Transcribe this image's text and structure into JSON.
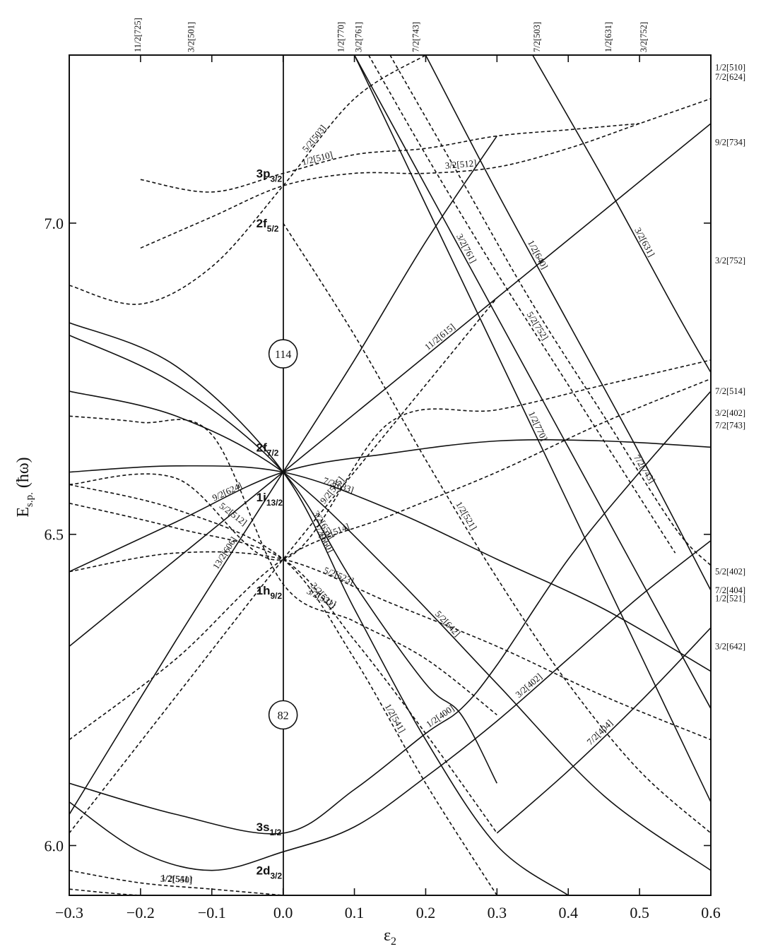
{
  "chart_data": {
    "type": "line",
    "title": "",
    "xlabel": "ε",
    "xlabel_sub": "2",
    "ylabel": "E",
    "ylabel_sub": "s.p.",
    "ylabel_unit": "(ħω)",
    "xlim": [
      -0.3,
      0.6
    ],
    "ylim": [
      5.92,
      7.27
    ],
    "xticks": [
      "-0.3",
      "-0.2",
      "-0.1",
      "0.0",
      "0.1",
      "0.2",
      "0.3",
      "0.4",
      "0.5",
      "0.6"
    ],
    "yticks": [
      "6.0",
      "6.5",
      "7.0"
    ],
    "grid": false,
    "legend": "none",
    "spherical_levels": [
      {
        "main": "3p",
        "sub": "3/2",
        "e": 7.08
      },
      {
        "main": "2f",
        "sub": "5/2",
        "e": 7.0
      },
      {
        "main": "2f",
        "sub": "7/2",
        "e": 6.64
      },
      {
        "main": "1i",
        "sub": "13/2",
        "e": 6.56
      },
      {
        "main": "1h",
        "sub": "9/2",
        "e": 6.41
      },
      {
        "main": "3s",
        "sub": "1/2",
        "e": 6.03
      },
      {
        "main": "2d",
        "sub": "3/2",
        "e": 5.96
      }
    ],
    "magic_numbers": [
      {
        "label": "114",
        "e": 6.79
      },
      {
        "label": "82",
        "e": 6.21
      }
    ],
    "top_edge_labels": [
      "11/2[725]",
      "3/2[501]",
      "1/2[770]",
      "3/2[761]",
      "7/2[743]",
      "7/2[503]",
      "1/2[631]",
      "3/2[752]"
    ],
    "right_edge_labels": [
      "1/2[510]",
      "7/2[624]",
      "9/2[734]",
      "3/2[752]",
      "7/2[514]",
      "3/2[402]",
      "7/2[743]",
      "5/2[402]",
      "7/2[404]",
      "1/2[521]",
      "3/2[642]"
    ],
    "series": [
      {
        "name": "9/2[624]",
        "style": "solid",
        "x": [
          -0.3,
          -0.15,
          0.0,
          0.15,
          0.3,
          0.45,
          0.6
        ],
        "y": [
          6.44,
          6.52,
          6.6,
          6.63,
          6.65,
          6.65,
          6.64
        ]
      },
      {
        "name": "7/2[633]",
        "style": "solid",
        "x": [
          -0.3,
          -0.15,
          0.0,
          0.15,
          0.3,
          0.45,
          0.6
        ],
        "y": [
          6.6,
          6.61,
          6.6,
          6.54,
          6.46,
          6.38,
          6.28
        ]
      },
      {
        "name": "5/2[642]",
        "style": "solid",
        "x": [
          -0.3,
          -0.15,
          0.0,
          0.15,
          0.3,
          0.45,
          0.6
        ],
        "y": [
          6.73,
          6.69,
          6.6,
          6.44,
          6.26,
          6.08,
          5.96
        ]
      },
      {
        "name": "3/2[651]",
        "style": "solid",
        "x": [
          -0.3,
          -0.15,
          0.0,
          0.1,
          0.2,
          0.25,
          0.3
        ],
        "y": [
          6.82,
          6.74,
          6.6,
          6.42,
          6.26,
          6.21,
          6.1
        ]
      },
      {
        "name": "1/2[660]",
        "style": "solid",
        "x": [
          -0.3,
          -0.15,
          0.0,
          0.1,
          0.2,
          0.3,
          0.4
        ],
        "y": [
          6.84,
          6.77,
          6.6,
          6.38,
          6.17,
          6.0,
          5.92
        ]
      },
      {
        "name": "11/2[615]",
        "style": "solid",
        "x": [
          -0.3,
          -0.15,
          0.0,
          0.15,
          0.3,
          0.45,
          0.6
        ],
        "y": [
          6.32,
          6.46,
          6.6,
          6.74,
          6.88,
          7.02,
          7.16
        ]
      },
      {
        "name": "13/2[606]",
        "style": "solid",
        "x": [
          -0.3,
          -0.15,
          0.0,
          0.1,
          0.2,
          0.3
        ],
        "y": [
          6.05,
          6.33,
          6.6,
          6.78,
          6.97,
          7.14
        ]
      },
      {
        "name": "1/2[400]",
        "style": "solid",
        "x": [
          -0.3,
          -0.15,
          0.0,
          0.1,
          0.2,
          0.25,
          0.3,
          0.4,
          0.5,
          0.6
        ],
        "y": [
          6.1,
          6.05,
          6.02,
          6.09,
          6.18,
          6.22,
          6.29,
          6.46,
          6.6,
          6.73
        ]
      },
      {
        "name": "3/2[402]",
        "style": "solid",
        "x": [
          -0.3,
          -0.2,
          -0.1,
          0.0,
          0.1,
          0.2,
          0.3,
          0.4,
          0.5,
          0.6
        ],
        "y": [
          6.07,
          5.99,
          5.96,
          5.99,
          6.03,
          6.11,
          6.2,
          6.3,
          6.4,
          6.49
        ]
      },
      {
        "name": "7/2[404]",
        "style": "solid",
        "x": [
          0.3,
          0.4,
          0.5,
          0.6
        ],
        "y": [
          6.02,
          6.12,
          6.23,
          6.35
        ]
      },
      {
        "name": "1/2[770]",
        "style": "solid",
        "x": [
          0.1,
          0.2,
          0.3,
          0.4,
          0.5,
          0.6
        ],
        "y": [
          7.27,
          7.03,
          6.79,
          6.55,
          6.31,
          6.07
        ]
      },
      {
        "name": "3/2[761]",
        "style": "solid",
        "x": [
          0.1,
          0.2,
          0.3,
          0.4,
          0.5,
          0.6
        ],
        "y": [
          7.27,
          7.06,
          6.85,
          6.64,
          6.43,
          6.22
        ]
      },
      {
        "name": "1/2[640]",
        "style": "solid",
        "x": [
          0.2,
          0.3,
          0.4,
          0.5,
          0.6
        ],
        "y": [
          7.27,
          7.05,
          6.84,
          6.63,
          6.41
        ]
      },
      {
        "name": "3/2[631]",
        "style": "solid",
        "x": [
          0.35,
          0.45,
          0.55,
          0.6
        ],
        "y": [
          7.27,
          7.07,
          6.86,
          6.76
        ]
      },
      {
        "name": "1/2[521]",
        "style": "dashed",
        "x": [
          0.0,
          0.1,
          0.2,
          0.3,
          0.4,
          0.5,
          0.6
        ],
        "y": [
          7.0,
          6.82,
          6.62,
          6.43,
          6.26,
          6.12,
          6.02
        ]
      },
      {
        "name": "3/2[512]",
        "style": "dashed",
        "x": [
          -0.2,
          -0.1,
          0.0,
          0.1,
          0.2,
          0.3,
          0.4,
          0.5,
          0.6
        ],
        "y": [
          6.96,
          7.01,
          7.06,
          7.08,
          7.08,
          7.09,
          7.12,
          7.16,
          7.2
        ]
      },
      {
        "name": "5/2[503]",
        "style": "dashed",
        "x": [
          -0.3,
          -0.2,
          -0.1,
          0.0,
          0.1,
          0.2
        ],
        "y": [
          6.9,
          6.87,
          6.93,
          7.06,
          7.2,
          7.27
        ]
      },
      {
        "name": "1/2[510]",
        "style": "dashed",
        "x": [
          -0.2,
          -0.1,
          0.0,
          0.1,
          0.2,
          0.3,
          0.4,
          0.5
        ],
        "y": [
          7.07,
          7.05,
          7.08,
          7.11,
          7.12,
          7.14,
          7.15,
          7.16
        ]
      },
      {
        "name": "3/2[521]",
        "style": "dashed",
        "x": [
          -0.3,
          -0.2,
          -0.1,
          0.0,
          0.1,
          0.2,
          0.3
        ],
        "y": [
          6.69,
          6.68,
          6.66,
          6.42,
          6.36,
          6.3,
          6.21
        ]
      },
      {
        "name": "5/2[512]",
        "style": "dashed",
        "x": [
          -0.3,
          -0.15,
          0.0,
          0.15,
          0.3,
          0.45,
          0.6
        ],
        "y": [
          6.58,
          6.59,
          6.46,
          6.68,
          6.7,
          6.74,
          6.78
        ]
      },
      {
        "name": "7/2[514]",
        "style": "dashed",
        "x": [
          -0.3,
          -0.15,
          0.0,
          0.15,
          0.3,
          0.45,
          0.6
        ],
        "y": [
          6.17,
          6.3,
          6.46,
          6.53,
          6.6,
          6.68,
          6.75
        ]
      },
      {
        "name": "9/2[505]",
        "style": "dashed",
        "x": [
          -0.3,
          -0.15,
          0.0,
          0.15,
          0.3
        ],
        "y": [
          6.02,
          6.24,
          6.46,
          6.67,
          6.88
        ]
      },
      {
        "name": "5/2[523]",
        "style": "dashed",
        "x": [
          -0.3,
          -0.15,
          0.0,
          0.15,
          0.3,
          0.45,
          0.6
        ],
        "y": [
          6.44,
          6.47,
          6.46,
          6.39,
          6.32,
          6.24,
          6.17
        ]
      },
      {
        "name": "3/2[532]",
        "style": "dashed",
        "x": [
          -0.3,
          -0.15,
          0.0,
          0.1,
          0.2,
          0.3
        ],
        "y": [
          6.55,
          6.51,
          6.46,
          6.33,
          6.18,
          6.02
        ]
      },
      {
        "name": "1/2[541]",
        "style": "dashed",
        "x": [
          -0.3,
          -0.15,
          0.0,
          0.1,
          0.2,
          0.3
        ],
        "y": [
          6.58,
          6.54,
          6.46,
          6.3,
          6.1,
          5.92
        ]
      },
      {
        "name": "1/2[550]",
        "style": "dashed",
        "x": [
          -0.3,
          -0.2,
          -0.1,
          0.0
        ],
        "y": [
          5.96,
          5.94,
          5.93,
          5.92
        ]
      },
      {
        "name": "3/2[541]",
        "style": "dashed",
        "x": [
          -0.3,
          -0.2,
          -0.1
        ],
        "y": [
          5.93,
          5.92,
          5.92
        ]
      },
      {
        "name": "7/2[743]",
        "style": "dashed",
        "x": [
          0.15,
          0.25,
          0.35,
          0.45,
          0.55,
          0.6
        ],
        "y": [
          7.27,
          7.07,
          6.87,
          6.69,
          6.51,
          6.45
        ]
      },
      {
        "name": "5/2[752]",
        "style": "dashed",
        "x": [
          0.12,
          0.2,
          0.3,
          0.4,
          0.5,
          0.55
        ],
        "y": [
          7.27,
          7.11,
          6.92,
          6.74,
          6.56,
          6.47
        ]
      }
    ]
  }
}
